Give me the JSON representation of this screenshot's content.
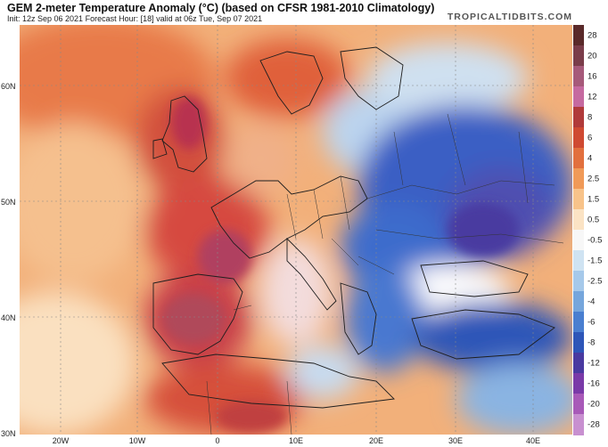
{
  "header": {
    "title": "GEM 2-meter Temperature Anomaly (°C) (based on CFSR 1981-2010 Climatology)",
    "subtitle": "Init: 12z Sep 06 2021   Forecast Hour: [18]   valid at 06z Tue, Sep 07 2021",
    "site": "TROPICALTIDBITS.COM"
  },
  "axes": {
    "lat_labels": [
      "60N",
      "50N",
      "40N",
      "30N"
    ],
    "lon_labels": [
      "20W",
      "10W",
      "0",
      "10E",
      "20E",
      "30E",
      "40E"
    ]
  },
  "colorbar": {
    "labels": [
      "28",
      "20",
      "16",
      "12",
      "8",
      "6",
      "4",
      "2.5",
      "1.5",
      "0.5",
      "-0.5",
      "-1.5",
      "-2.5",
      "-4",
      "-6",
      "-8",
      "-12",
      "-16",
      "-20",
      "-28"
    ],
    "colors": [
      "#5a2a2a",
      "#7a3d4a",
      "#a65a7a",
      "#c56aa0",
      "#b03a3a",
      "#cf4a32",
      "#e2703e",
      "#f09a58",
      "#f8c38a",
      "#fbe3c4",
      "#f7f7f7",
      "#cfe3f2",
      "#a6c9ea",
      "#76a6dc",
      "#4a7fd0",
      "#2e56b8",
      "#4a3aa0",
      "#7a3aa8",
      "#a85ab8",
      "#c890d0"
    ]
  },
  "map": {
    "ocean_color": "#f4b482",
    "warm_color": "#e0603a",
    "hot_color": "#b83050",
    "cold_color": "#3c64c8",
    "very_cold_color": "#2c3ca8",
    "border_color": "#222222"
  }
}
